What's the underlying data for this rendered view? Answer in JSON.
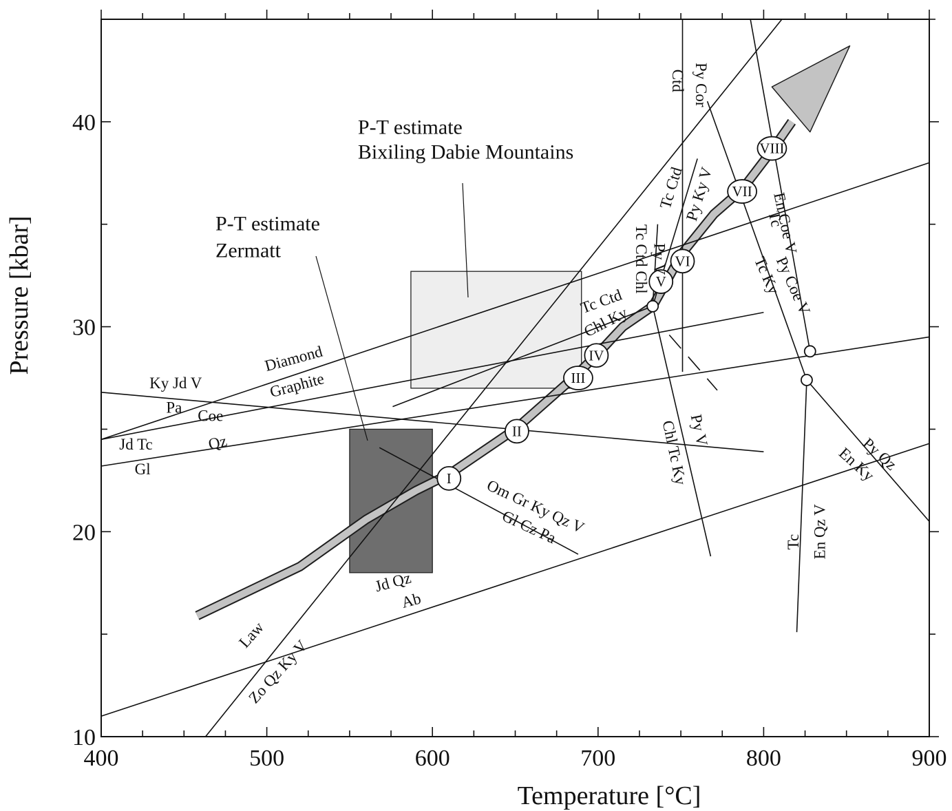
{
  "chart_data": {
    "type": "line",
    "xlabel": "Temperature [°C]",
    "ylabel": "Pressure [kbar]",
    "xlim": [
      400,
      900
    ],
    "ylim": [
      10,
      45
    ],
    "x_ticks": [
      400,
      500,
      600,
      700,
      800,
      900
    ],
    "y_ticks": [
      10,
      20,
      30,
      40
    ],
    "grid": false,
    "reactions": [
      {
        "id": "diamond-graphite",
        "labels": [
          "Diamond",
          "Graphite"
        ],
        "points": [
          [
            400,
            24.5
          ],
          [
            900,
            38
          ]
        ]
      },
      {
        "id": "ky-jd-v-pa",
        "labels": [
          "Ky Jd V",
          "Pa"
        ],
        "points": [
          [
            400,
            24.5
          ],
          [
            800,
            30.7
          ]
        ]
      },
      {
        "id": "coe-qz",
        "labels": [
          "Coe",
          "Qz"
        ],
        "points": [
          [
            400,
            23.2
          ],
          [
            900,
            29.5
          ]
        ]
      },
      {
        "id": "jd-tc-gl",
        "labels": [
          "Jd Tc",
          "Gl"
        ],
        "points": [
          [
            400,
            26.8
          ],
          [
            800,
            23.9
          ]
        ]
      },
      {
        "id": "jd-qz-ab",
        "labels": [
          "Jd Qz",
          "Ab"
        ],
        "points": [
          [
            400,
            11.0
          ],
          [
            900,
            24.3
          ]
        ]
      },
      {
        "id": "law-zo-qz-ky-v",
        "labels": [
          "Law",
          "Zo Qz Ky V"
        ],
        "points": [
          [
            463,
            10.0
          ],
          [
            811,
            45.0
          ]
        ]
      },
      {
        "id": "om-gr-ky-qz-v",
        "labels": [
          "Om Gr Ky Qz V",
          "Gl Cz Pa"
        ],
        "points": [
          [
            568,
            24.1
          ],
          [
            688,
            18.9
          ]
        ]
      },
      {
        "id": "tc-ctd-chl-ky",
        "labels": [
          "Tc Ctd",
          "Chl Ky"
        ],
        "points": [
          [
            576,
            26.1
          ],
          [
            733,
            31.0
          ]
        ]
      },
      {
        "id": "chl-tc-ky-py-v",
        "labels": [
          "Py V",
          "Chl Tc Ky"
        ],
        "points": [
          [
            733,
            31.0
          ],
          [
            768,
            18.8
          ]
        ]
      },
      {
        "id": "py-cor-ctd",
        "labels": [
          "Py Cor",
          "Ctd"
        ],
        "points": [
          [
            751,
            27.8
          ],
          [
            751,
            45.0
          ]
        ]
      },
      {
        "id": "py-v-tc-ctd-chl",
        "labels": [
          "Py V",
          "Tc Ctd Chl"
        ],
        "points": [
          [
            733,
            31.0
          ],
          [
            736,
            35.0
          ]
        ]
      },
      {
        "id": "tc-ctd-py-ky-v",
        "labels": [
          "Tc Ctd",
          "Py Ky V"
        ],
        "points": [
          [
            733,
            31.0
          ],
          [
            760,
            38.2
          ]
        ]
      },
      {
        "id": "en-coe-v-tc",
        "labels": [
          "En Coe V",
          "Tc"
        ],
        "points": [
          [
            828,
            28.8
          ],
          [
            792,
            45.0
          ]
        ]
      },
      {
        "id": "py-coe-v-tc-ky",
        "labels": [
          "Py Coe V",
          "Tc Ky"
        ],
        "points": [
          [
            826,
            27.4
          ],
          [
            766,
            41.0
          ]
        ]
      },
      {
        "id": "py-qz-en-ky",
        "labels": [
          "Py Qz",
          "En Ky"
        ],
        "points": [
          [
            826,
            27.4
          ],
          [
            900,
            20.5
          ]
        ]
      },
      {
        "id": "tc-en-qz-v",
        "labels": [
          "Tc",
          "En Qz V"
        ],
        "points": [
          [
            826,
            27.4
          ],
          [
            820,
            15.1
          ]
        ]
      },
      {
        "id": "metastable-ext",
        "labels": [],
        "dashed": true,
        "points": [
          [
            743,
            29.6
          ],
          [
            772,
            26.9
          ]
        ]
      }
    ],
    "invariant_points": [
      [
        733,
        31.0
      ],
      [
        826,
        27.4
      ],
      [
        828,
        28.8
      ]
    ],
    "pt_path": {
      "points": [
        [
          458,
          15.9
        ],
        [
          520,
          18.3
        ],
        [
          560,
          20.6
        ],
        [
          590,
          22.0
        ],
        [
          610,
          22.8
        ],
        [
          650,
          25.0
        ],
        [
          685,
          27.5
        ],
        [
          700,
          28.7
        ],
        [
          715,
          30.0
        ],
        [
          733,
          31.0
        ],
        [
          742,
          32.3
        ],
        [
          750,
          33.5
        ],
        [
          770,
          35.5
        ],
        [
          787,
          36.7
        ],
        [
          805,
          38.6
        ],
        [
          817,
          40.0
        ]
      ],
      "arrowhead": [
        [
          805,
          41.7
        ],
        [
          828,
          39.5
        ],
        [
          852,
          43.7
        ]
      ],
      "stages": [
        {
          "label": "I",
          "x": 610,
          "y": 22.6
        },
        {
          "label": "II",
          "x": 651,
          "y": 24.9
        },
        {
          "label": "III",
          "x": 688,
          "y": 27.5
        },
        {
          "label": "IV",
          "x": 699,
          "y": 28.6
        },
        {
          "label": "V",
          "x": 738,
          "y": 32.2
        },
        {
          "label": "VI",
          "x": 751,
          "y": 33.2
        },
        {
          "label": "VII",
          "x": 787,
          "y": 36.6
        },
        {
          "label": "VIII",
          "x": 805,
          "y": 38.7
        }
      ]
    },
    "estimates": [
      {
        "id": "zermatt",
        "labels": [
          "P-T estimate",
          "Zermatt"
        ],
        "x": [
          550,
          600
        ],
        "y": [
          18.0,
          25.0
        ],
        "fill": "#6e6e6e"
      },
      {
        "id": "dabie",
        "labels": [
          "P-T estimate",
          "Bixiling Dabie Mountains"
        ],
        "x": [
          587,
          690
        ],
        "y": [
          27.0,
          32.7
        ],
        "fill": "#eeeeee"
      }
    ]
  }
}
